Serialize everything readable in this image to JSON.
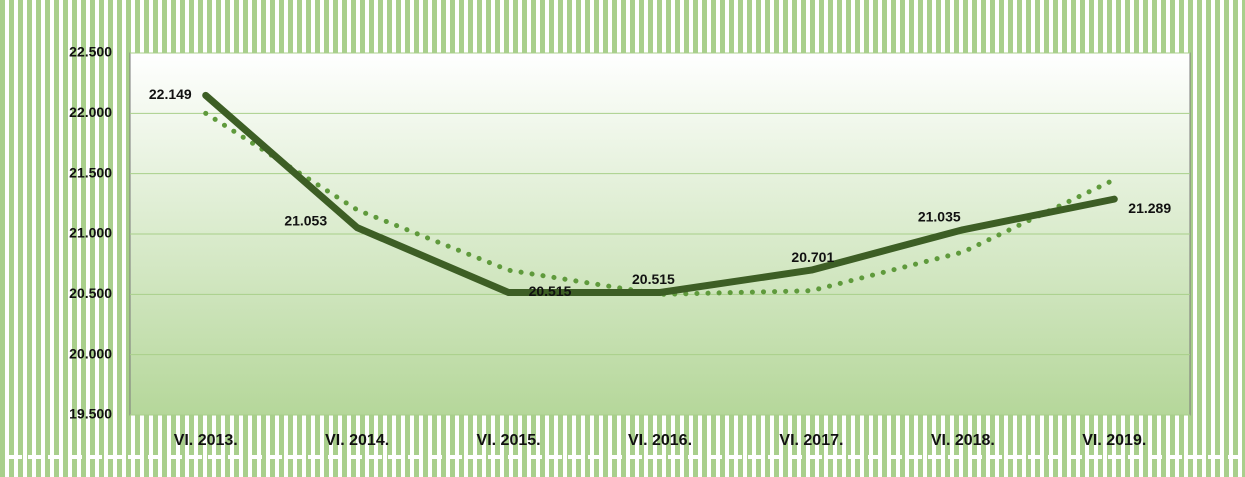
{
  "chart_data": {
    "type": "line",
    "categories": [
      "VI. 2013.",
      "VI. 2014.",
      "VI. 2015.",
      "VI. 2016.",
      "VI. 2017.",
      "VI. 2018.",
      "VI. 2019."
    ],
    "series": [
      {
        "color": "#3d5e25",
        "values": [
          22149,
          21053,
          20515,
          20515,
          20701,
          21035,
          21289
        ],
        "value_labels": [
          "22.149",
          "21.053",
          "20.515",
          "20.515",
          "20.701",
          "21.035",
          "21.289"
        ]
      },
      {
        "color": "#5f9a3c",
        "dash": "dotted",
        "values": [
          22000,
          21200,
          20700,
          20500,
          20530,
          20850,
          21450
        ]
      }
    ],
    "ylim": [
      19500,
      22500
    ],
    "yticks": [
      {
        "value": 19500,
        "label": "19.500"
      },
      {
        "value": 20000,
        "label": "20.000"
      },
      {
        "value": 20500,
        "label": "20.500"
      },
      {
        "value": 21000,
        "label": "21.000"
      },
      {
        "value": 21500,
        "label": "21.500"
      },
      {
        "value": 22000,
        "label": "22.000"
      },
      {
        "value": 22500,
        "label": "22.500"
      }
    ],
    "grid": true
  }
}
